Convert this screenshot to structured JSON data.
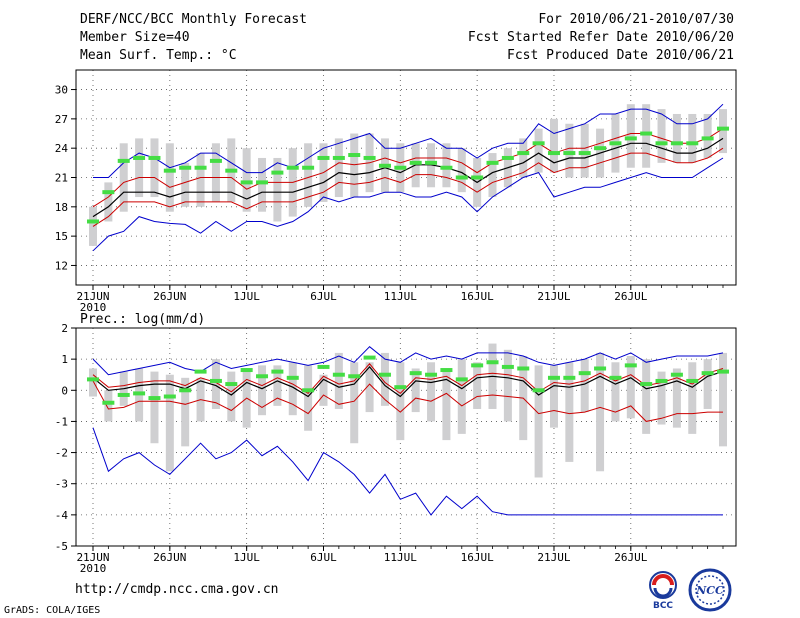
{
  "header": {
    "title": "DERF/NCC/BCC Monthly Forecast",
    "member_size": "Member Size=40",
    "variable1": "Mean Surf. Temp.: °C",
    "period": "For 2010/06/21-2010/07/30",
    "started": "Fcst Started Refer Date 2010/06/20",
    "produced": "Fcst Produced Date 2010/06/21"
  },
  "footer": {
    "url": "http://cmdp.ncc.cma.gov.cn",
    "grads": "GrADS: COLA/IGES",
    "logo_bcc": "BCC",
    "logo_ncc": "NCC"
  },
  "colors": {
    "box": "#cfcfd1",
    "obs": "#44dd44",
    "mean": "#000000",
    "spread": "#cc0000",
    "extreme": "#0000cc"
  },
  "chart_data": [
    {
      "type": "box-plume",
      "title": "Mean Surf. Temp.: °C",
      "ylim": [
        10,
        32
      ],
      "yticks": [
        12,
        15,
        18,
        21,
        24,
        27,
        30
      ],
      "xticks": [
        {
          "day": 0,
          "label": "21JUN",
          "sub": "2010"
        },
        {
          "day": 5,
          "label": "26JUN"
        },
        {
          "day": 10,
          "label": "1JUL"
        },
        {
          "day": 15,
          "label": "6JUL"
        },
        {
          "day": 20,
          "label": "11JUL"
        },
        {
          "day": 25,
          "label": "16JUL"
        },
        {
          "day": 30,
          "label": "21JUL"
        },
        {
          "day": 35,
          "label": "26JUL"
        }
      ],
      "box_low": [
        14.0,
        16.5,
        17.5,
        19.0,
        19.0,
        17.5,
        18.0,
        18.0,
        18.5,
        18.5,
        17.5,
        17.5,
        16.5,
        17.0,
        18.0,
        18.5,
        19.0,
        19.0,
        19.5,
        19.5,
        19.5,
        20.0,
        20.0,
        20.0,
        19.5,
        18.0,
        19.0,
        20.0,
        21.0,
        21.5,
        21.5,
        21.0,
        21.0,
        21.0,
        21.5,
        22.0,
        22.0,
        22.5,
        22.5,
        22.5,
        23.0,
        23.5
      ],
      "box_high": [
        18.0,
        20.5,
        24.5,
        25.0,
        25.0,
        24.5,
        22.5,
        23.5,
        24.5,
        25.0,
        24.0,
        23.0,
        23.0,
        24.0,
        24.5,
        24.5,
        25.0,
        25.5,
        25.5,
        25.0,
        24.5,
        24.5,
        24.5,
        24.5,
        24.0,
        23.0,
        23.5,
        24.0,
        25.0,
        26.0,
        27.0,
        26.5,
        26.5,
        26.0,
        27.5,
        28.5,
        28.5,
        28.0,
        27.5,
        27.5,
        27.5,
        28.0
      ],
      "obs": [
        16.5,
        19.5,
        22.7,
        23.0,
        23.0,
        21.7,
        22.0,
        22.0,
        22.7,
        21.7,
        20.5,
        20.5,
        21.5,
        22.0,
        22.0,
        23.0,
        23.0,
        23.3,
        23.0,
        22.2,
        22.0,
        22.5,
        22.5,
        22.0,
        21.0,
        21.0,
        22.5,
        23.0,
        23.5,
        24.5,
        23.5,
        23.5,
        23.5,
        24.0,
        24.5,
        25.0,
        25.5,
        24.5,
        24.5,
        24.5,
        25.0,
        26.0
      ],
      "mean": [
        17.0,
        18.0,
        19.5,
        19.5,
        19.5,
        19.0,
        19.5,
        19.5,
        19.5,
        19.5,
        18.8,
        19.5,
        19.5,
        19.5,
        20.0,
        20.5,
        21.5,
        21.3,
        21.5,
        22.0,
        21.5,
        22.3,
        22.3,
        22.0,
        21.5,
        20.5,
        21.5,
        22.0,
        22.5,
        23.5,
        22.5,
        23.0,
        23.0,
        23.5,
        24.0,
        24.5,
        24.5,
        24.0,
        23.5,
        23.5,
        24.0,
        25.0
      ],
      "upper": [
        18.0,
        19.0,
        20.5,
        21.0,
        21.0,
        20.0,
        20.5,
        21.0,
        21.0,
        21.0,
        19.8,
        20.5,
        20.5,
        20.5,
        21.0,
        21.5,
        22.5,
        22.3,
        22.5,
        23.0,
        22.5,
        23.0,
        23.0,
        23.0,
        22.5,
        21.5,
        22.5,
        23.0,
        23.5,
        24.5,
        23.5,
        24.0,
        24.0,
        24.5,
        25.0,
        25.5,
        25.5,
        25.0,
        24.5,
        24.5,
        25.0,
        26.0
      ],
      "lower": [
        16.0,
        17.0,
        18.5,
        18.5,
        18.5,
        18.0,
        18.5,
        18.5,
        18.5,
        18.5,
        17.8,
        18.5,
        18.5,
        18.5,
        19.0,
        19.5,
        20.5,
        20.3,
        20.5,
        21.0,
        20.5,
        21.3,
        21.3,
        21.0,
        20.5,
        19.5,
        20.5,
        21.0,
        21.5,
        22.5,
        21.5,
        22.0,
        22.0,
        22.5,
        23.0,
        23.5,
        23.5,
        23.0,
        22.5,
        22.5,
        23.0,
        24.0
      ],
      "max": [
        21.0,
        21.0,
        22.5,
        23.5,
        23.0,
        22.0,
        22.5,
        23.5,
        23.5,
        22.5,
        21.5,
        21.5,
        22.5,
        22.0,
        23.0,
        24.0,
        24.5,
        25.0,
        25.5,
        24.0,
        24.0,
        24.5,
        25.0,
        24.0,
        24.0,
        23.0,
        24.0,
        24.5,
        24.5,
        26.5,
        25.5,
        26.0,
        26.5,
        27.5,
        27.5,
        28.0,
        28.0,
        27.5,
        26.5,
        26.5,
        27.0,
        28.5
      ],
      "min": [
        13.5,
        15.0,
        15.5,
        17.0,
        16.5,
        16.3,
        16.2,
        15.3,
        16.5,
        15.5,
        16.5,
        16.5,
        16.0,
        16.5,
        17.5,
        19.0,
        18.5,
        19.0,
        19.0,
        19.5,
        19.5,
        19.0,
        19.0,
        19.5,
        19.0,
        17.5,
        19.0,
        20.0,
        21.0,
        21.5,
        19.0,
        19.5,
        20.0,
        20.0,
        20.5,
        21.0,
        21.5,
        21.0,
        21.0,
        21.0,
        22.0,
        23.0
      ]
    },
    {
      "type": "box-plume",
      "title": "Prec.: log(mm/d)",
      "ylim": [
        -5,
        2
      ],
      "yticks": [
        -5,
        -4,
        -3,
        -2,
        -1,
        0,
        1,
        2
      ],
      "xticks": [
        {
          "day": 0,
          "label": "21JUN",
          "sub": "2010"
        },
        {
          "day": 5,
          "label": "26JUN"
        },
        {
          "day": 10,
          "label": "1JUL"
        },
        {
          "day": 15,
          "label": "6JUL"
        },
        {
          "day": 20,
          "label": "11JUL"
        },
        {
          "day": 25,
          "label": "16JUL"
        },
        {
          "day": 30,
          "label": "21JUL"
        },
        {
          "day": 35,
          "label": "26JUL"
        }
      ],
      "box_low": [
        -0.2,
        -1.0,
        -0.5,
        -1.0,
        -1.7,
        -2.6,
        -1.8,
        -1.0,
        -0.6,
        -1.0,
        -1.2,
        -0.8,
        -0.5,
        -0.8,
        -1.3,
        -0.5,
        -0.6,
        -1.7,
        -0.7,
        -0.5,
        -1.6,
        -0.7,
        -1.0,
        -1.6,
        -1.4,
        -0.6,
        -0.6,
        -1.0,
        -1.6,
        -2.8,
        -1.2,
        -2.3,
        -0.7,
        -2.6,
        -1.0,
        -0.9,
        -1.4,
        -1.1,
        -1.2,
        -1.4,
        -0.6,
        -1.8
      ],
      "box_high": [
        0.7,
        0.0,
        0.6,
        0.7,
        0.6,
        0.5,
        0.4,
        0.4,
        1.0,
        0.6,
        0.6,
        0.8,
        0.8,
        0.9,
        0.8,
        0.5,
        1.2,
        0.9,
        0.9,
        1.2,
        0.9,
        0.7,
        0.9,
        0.7,
        1.0,
        0.9,
        1.5,
        1.3,
        1.1,
        0.8,
        0.8,
        0.9,
        1.0,
        1.2,
        0.9,
        1.1,
        1.0,
        0.6,
        0.7,
        0.9,
        1.0,
        1.2
      ],
      "obs": [
        0.35,
        -0.4,
        -0.15,
        -0.1,
        -0.25,
        -0.2,
        0.0,
        0.6,
        0.3,
        0.2,
        0.65,
        0.45,
        0.6,
        0.4,
        0.0,
        0.75,
        0.5,
        0.45,
        1.05,
        0.5,
        0.1,
        0.55,
        0.5,
        0.65,
        0.35,
        0.8,
        0.9,
        0.75,
        0.7,
        0.0,
        0.4,
        0.4,
        0.55,
        0.7,
        0.4,
        0.8,
        0.2,
        0.3,
        0.5,
        0.3,
        0.55,
        0.6
      ],
      "mean": [
        0.4,
        0.0,
        0.05,
        0.15,
        0.2,
        0.2,
        0.05,
        0.3,
        0.15,
        -0.15,
        0.25,
        0.05,
        0.3,
        0.1,
        -0.2,
        0.35,
        0.1,
        0.2,
        0.75,
        0.15,
        -0.2,
        0.3,
        0.25,
        0.35,
        0.05,
        0.4,
        0.45,
        0.4,
        0.3,
        -0.15,
        0.15,
        0.1,
        0.2,
        0.45,
        0.2,
        0.4,
        0.05,
        0.15,
        0.3,
        0.1,
        0.45,
        0.6
      ],
      "upper": [
        0.5,
        0.1,
        0.15,
        0.25,
        0.3,
        0.3,
        0.15,
        0.4,
        0.25,
        -0.05,
        0.35,
        0.15,
        0.4,
        0.2,
        -0.1,
        0.45,
        0.2,
        0.3,
        0.85,
        0.25,
        -0.1,
        0.4,
        0.35,
        0.45,
        0.15,
        0.5,
        0.55,
        0.5,
        0.4,
        -0.05,
        0.25,
        0.2,
        0.3,
        0.55,
        0.3,
        0.5,
        0.15,
        0.25,
        0.4,
        0.2,
        0.55,
        0.7
      ],
      "lower": [
        0.3,
        -0.6,
        -0.55,
        -0.35,
        -0.35,
        -0.35,
        -0.45,
        -0.3,
        -0.4,
        -0.65,
        -0.25,
        -0.55,
        -0.25,
        -0.45,
        -0.75,
        -0.15,
        -0.45,
        -0.35,
        0.2,
        -0.3,
        -0.7,
        -0.25,
        -0.35,
        -0.1,
        -0.5,
        -0.2,
        -0.15,
        -0.2,
        -0.25,
        -0.75,
        -0.65,
        -0.75,
        -0.7,
        -0.55,
        -0.7,
        -0.5,
        -1.0,
        -0.9,
        -0.75,
        -0.75,
        -0.7,
        -0.7
      ],
      "max": [
        1.0,
        0.5,
        0.6,
        0.7,
        0.8,
        0.9,
        0.7,
        0.6,
        0.9,
        0.7,
        0.8,
        0.9,
        1.0,
        0.9,
        0.8,
        0.9,
        1.1,
        0.9,
        1.4,
        1.0,
        0.9,
        1.2,
        1.0,
        1.1,
        1.0,
        1.2,
        1.2,
        1.2,
        1.1,
        0.9,
        0.8,
        0.9,
        1.0,
        1.2,
        1.0,
        1.2,
        0.9,
        1.0,
        1.1,
        1.1,
        1.1,
        1.2
      ],
      "min": [
        -1.2,
        -2.6,
        -2.2,
        -2.0,
        -2.4,
        -2.7,
        -2.2,
        -1.7,
        -2.2,
        -2.0,
        -1.6,
        -2.1,
        -1.8,
        -2.3,
        -2.9,
        -2.0,
        -2.3,
        -2.7,
        -3.3,
        -2.7,
        -3.5,
        -3.3,
        -4.0,
        -3.4,
        -3.8,
        -3.4,
        -3.9,
        -4.0,
        -4.0,
        -4.0,
        -4.0,
        -4.0,
        -4.0,
        -4.0,
        -4.0,
        -4.0,
        -4.0,
        -4.0,
        -4.0,
        -4.0,
        -4.0,
        -4.0
      ]
    }
  ]
}
